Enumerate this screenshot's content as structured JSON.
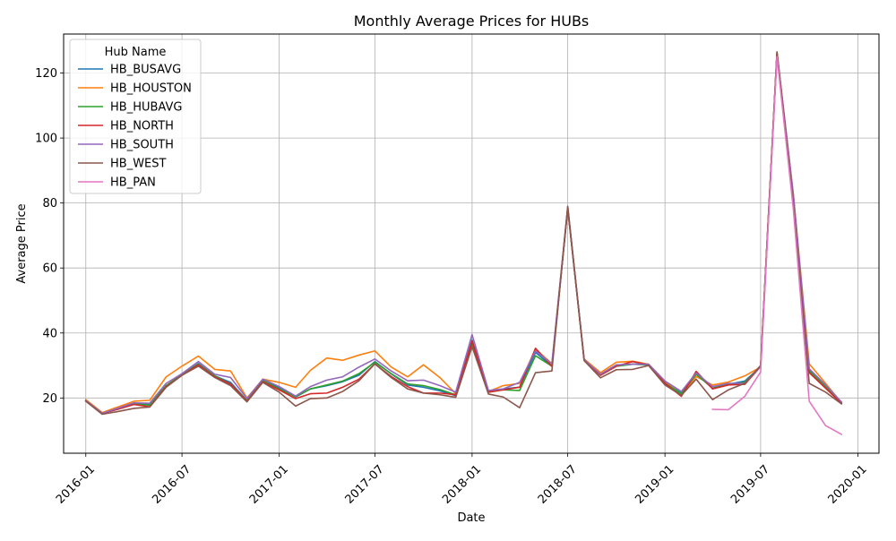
{
  "chart_data": {
    "type": "line",
    "title": "Monthly Average Prices for HUBs",
    "xlabel": "Date",
    "ylabel": "Average Price",
    "grid": true,
    "legend": {
      "title": "Hub Name",
      "placement": "top-left"
    },
    "xlim": [
      "2015-11-20",
      "2020-02-10"
    ],
    "ylim": [
      3,
      132
    ],
    "x_ticks": [
      "2016-01",
      "2016-07",
      "2017-01",
      "2017-07",
      "2018-01",
      "2018-07",
      "2019-01",
      "2019-07",
      "2020-01"
    ],
    "y_ticks": [
      20,
      40,
      60,
      80,
      100,
      120
    ],
    "x": [
      "2016-01",
      "2016-02",
      "2016-03",
      "2016-04",
      "2016-05",
      "2016-06",
      "2016-07",
      "2016-08",
      "2016-09",
      "2016-10",
      "2016-11",
      "2016-12",
      "2017-01",
      "2017-02",
      "2017-03",
      "2017-04",
      "2017-05",
      "2017-06",
      "2017-07",
      "2017-08",
      "2017-09",
      "2017-10",
      "2017-11",
      "2017-12",
      "2018-01",
      "2018-02",
      "2018-03",
      "2018-04",
      "2018-05",
      "2018-06",
      "2018-07",
      "2018-08",
      "2018-09",
      "2018-10",
      "2018-11",
      "2018-12",
      "2019-01",
      "2019-02",
      "2019-03",
      "2019-04",
      "2019-05",
      "2019-06",
      "2019-07",
      "2019-08",
      "2019-09",
      "2019-10",
      "2019-11",
      "2019-12"
    ],
    "series": [
      {
        "name": "HB_BUSAVG",
        "color": "#1f77b4",
        "values": [
          19.2,
          15.3,
          16.5,
          18.3,
          18.0,
          23.8,
          27.2,
          30.6,
          26.8,
          24.8,
          19.2,
          25.4,
          23.2,
          20.3,
          22.8,
          23.8,
          25.0,
          27.0,
          31.2,
          27.4,
          24.0,
          23.3,
          22.2,
          20.7,
          37.8,
          21.8,
          22.8,
          23.3,
          34.0,
          29.8,
          78.3,
          31.8,
          27.0,
          29.8,
          30.4,
          30.2,
          24.7,
          21.5,
          27.6,
          23.0,
          24.2,
          25.2,
          29.6,
          126.0,
          82.0,
          28.5,
          23.8,
          18.5
        ]
      },
      {
        "name": "HB_HOUSTON",
        "color": "#ff7f0e",
        "values": [
          19.5,
          15.5,
          17.2,
          19.0,
          19.3,
          26.5,
          29.8,
          32.9,
          28.8,
          28.3,
          20.0,
          25.8,
          24.8,
          23.3,
          28.5,
          32.3,
          31.6,
          33.2,
          34.5,
          29.5,
          26.5,
          30.2,
          26.3,
          21.3,
          37.0,
          22.0,
          23.8,
          24.5,
          35.0,
          30.6,
          78.6,
          32.0,
          27.8,
          31.0,
          31.3,
          30.4,
          25.2,
          21.0,
          26.6,
          24.0,
          24.9,
          26.8,
          29.5,
          126.5,
          82.5,
          30.5,
          24.5,
          18.5
        ]
      },
      {
        "name": "HB_HUBAVG",
        "color": "#2ca02c",
        "values": [
          19.2,
          15.3,
          16.5,
          18.2,
          17.8,
          23.8,
          27.2,
          30.4,
          26.8,
          24.3,
          19.2,
          25.4,
          22.8,
          20.4,
          22.8,
          24.0,
          25.2,
          27.5,
          31.0,
          27.5,
          24.3,
          23.8,
          22.6,
          21.0,
          36.8,
          21.8,
          22.5,
          22.3,
          33.0,
          29.8,
          78.3,
          31.8,
          27.0,
          29.8,
          30.4,
          30.2,
          24.5,
          21.3,
          27.3,
          23.0,
          24.1,
          24.8,
          29.6,
          126.0,
          82.0,
          28.3,
          23.5,
          18.5
        ]
      },
      {
        "name": "HB_NORTH",
        "color": "#d62728",
        "values": [
          19.2,
          15.3,
          16.5,
          18.0,
          17.3,
          23.5,
          27.0,
          30.2,
          26.5,
          24.3,
          19.0,
          25.0,
          22.5,
          19.8,
          21.3,
          21.5,
          23.3,
          25.8,
          30.5,
          26.6,
          23.5,
          21.5,
          21.5,
          21.0,
          37.5,
          21.8,
          22.5,
          23.3,
          35.3,
          29.7,
          78.3,
          31.8,
          27.0,
          29.8,
          31.2,
          30.2,
          24.5,
          20.5,
          28.2,
          22.8,
          24.0,
          24.2,
          29.6,
          126.0,
          81.5,
          27.8,
          23.0,
          18.3
        ]
      },
      {
        "name": "HB_SOUTH",
        "color": "#9467bd",
        "values": [
          19.2,
          15.3,
          16.8,
          18.5,
          18.4,
          24.5,
          27.5,
          31.2,
          27.3,
          26.3,
          19.8,
          25.8,
          23.5,
          20.6,
          23.5,
          25.5,
          26.5,
          29.5,
          32.0,
          28.3,
          25.3,
          25.5,
          23.8,
          21.8,
          39.5,
          22.3,
          22.8,
          24.8,
          34.5,
          30.5,
          78.8,
          31.8,
          27.3,
          30.2,
          30.4,
          30.4,
          25.2,
          22.0,
          27.7,
          23.5,
          24.5,
          24.5,
          29.6,
          126.3,
          82.5,
          29.0,
          24.0,
          18.8
        ]
      },
      {
        "name": "HB_WEST",
        "color": "#8c564b",
        "values": [
          19.0,
          15.0,
          15.8,
          16.8,
          17.2,
          23.3,
          27.0,
          29.8,
          26.3,
          23.8,
          18.8,
          24.8,
          21.8,
          17.5,
          19.8,
          20.0,
          22.0,
          25.3,
          30.5,
          26.3,
          22.8,
          21.5,
          21.0,
          20.2,
          35.8,
          21.2,
          20.3,
          17.0,
          27.8,
          28.3,
          79.0,
          31.5,
          26.2,
          28.7,
          28.8,
          30.0,
          24.0,
          20.8,
          25.8,
          19.5,
          22.5,
          24.5,
          30.0,
          126.5,
          80.0,
          24.5,
          21.8,
          18.2
        ]
      },
      {
        "name": "HB_PAN",
        "color": "#e377c2",
        "values": [
          null,
          null,
          null,
          null,
          null,
          null,
          null,
          null,
          null,
          null,
          null,
          null,
          null,
          null,
          null,
          null,
          null,
          null,
          null,
          null,
          null,
          null,
          null,
          null,
          null,
          null,
          null,
          null,
          null,
          null,
          null,
          null,
          null,
          null,
          null,
          null,
          null,
          null,
          null,
          16.5,
          16.4,
          20.5,
          28.0,
          125.0,
          78.0,
          19.0,
          11.5,
          8.8
        ]
      }
    ]
  }
}
